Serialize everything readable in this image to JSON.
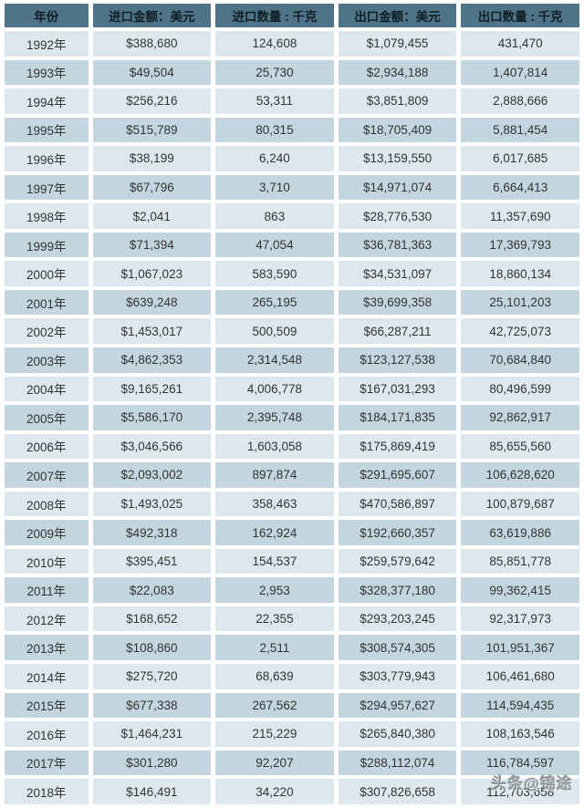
{
  "colors": {
    "header_bg": "#4f7487",
    "row_light": "#dde8ee",
    "row_dark": "#c3d5df",
    "header_text": "#101e26",
    "cell_text": "#333333",
    "gap_color": "#ffffff"
  },
  "watermark": {
    "text": "头条@锦途"
  },
  "chart_data": {
    "type": "table",
    "title": "",
    "columns": [
      "年份",
      "进口金额：美元",
      "进口数量 : 千克",
      "出口金额：美元",
      "出口数量 : 千克"
    ],
    "rows": [
      [
        "1992年",
        "$388,680",
        "124,608",
        "$1,079,455",
        "431,470"
      ],
      [
        "1993年",
        "$49,504",
        "25,730",
        "$2,934,188",
        "1,407,814"
      ],
      [
        "1994年",
        "$256,216",
        "53,311",
        "$3,851,809",
        "2,888,666"
      ],
      [
        "1995年",
        "$515,789",
        "80,315",
        "$18,705,409",
        "5,881,454"
      ],
      [
        "1996年",
        "$38,199",
        "6,240",
        "$13,159,550",
        "6,017,685"
      ],
      [
        "1997年",
        "$67,796",
        "3,710",
        "$14,971,074",
        "6,664,413"
      ],
      [
        "1998年",
        "$2,041",
        "863",
        "$28,776,530",
        "11,357,690"
      ],
      [
        "1999年",
        "$71,394",
        "47,054",
        "$36,781,363",
        "17,369,793"
      ],
      [
        "2000年",
        "$1,067,023",
        "583,590",
        "$34,531,097",
        "18,860,134"
      ],
      [
        "2001年",
        "$639,248",
        "265,195",
        "$39,699,358",
        "25,101,203"
      ],
      [
        "2002年",
        "$1,453,017",
        "500,509",
        "$66,287,211",
        "42,725,073"
      ],
      [
        "2003年",
        "$4,862,353",
        "2,314,548",
        "$123,127,538",
        "70,684,840"
      ],
      [
        "2004年",
        "$9,165,261",
        "4,006,778",
        "$167,031,293",
        "80,496,599"
      ],
      [
        "2005年",
        "$5,586,170",
        "2,395,748",
        "$184,171,835",
        "92,862,917"
      ],
      [
        "2006年",
        "$3,046,566",
        "1,603,058",
        "$175,869,419",
        "85,655,560"
      ],
      [
        "2007年",
        "$2,093,002",
        "897,874",
        "$291,695,607",
        "106,628,620"
      ],
      [
        "2008年",
        "$1,493,025",
        "358,463",
        "$470,586,897",
        "100,879,687"
      ],
      [
        "2009年",
        "$492,318",
        "162,924",
        "$192,660,357",
        "63,619,886"
      ],
      [
        "2010年",
        "$395,451",
        "154,537",
        "$259,579,642",
        "85,851,778"
      ],
      [
        "2011年",
        "$22,083",
        "2,953",
        "$328,377,180",
        "99,362,415"
      ],
      [
        "2012年",
        "$168,652",
        "22,355",
        "$293,203,245",
        "92,317,973"
      ],
      [
        "2013年",
        "$108,860",
        "2,511",
        "$308,574,305",
        "101,951,367"
      ],
      [
        "2014年",
        "$275,720",
        "68,639",
        "$303,779,943",
        "106,461,680"
      ],
      [
        "2015年",
        "$677,338",
        "267,562",
        "$294,957,627",
        "114,594,435"
      ],
      [
        "2016年",
        "$1,464,231",
        "215,229",
        "$265,840,380",
        "108,163,546"
      ],
      [
        "2017年",
        "$301,280",
        "92,207",
        "$288,112,074",
        "116,784,597"
      ],
      [
        "2018年",
        "$146,491",
        "34,220",
        "$307,826,658",
        "112,703,658"
      ]
    ]
  }
}
